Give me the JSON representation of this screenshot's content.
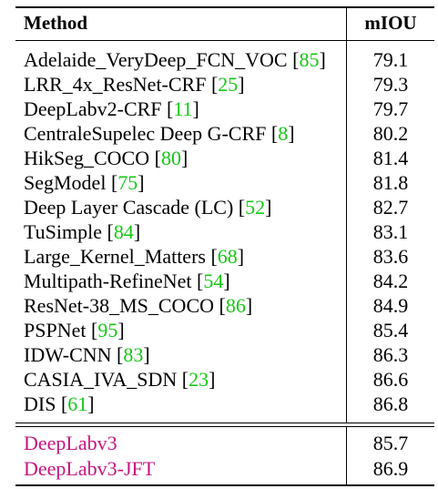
{
  "table": {
    "headers": {
      "method": "Method",
      "miou": "mIOU"
    },
    "rows": [
      {
        "method": "Adelaide_VeryDeep_FCN_VOC",
        "ref": "85",
        "miou": "79.1"
      },
      {
        "method": "LRR_4x_ResNet-CRF",
        "ref": "25",
        "miou": "79.3"
      },
      {
        "method": "DeepLabv2-CRF",
        "ref": "11",
        "miou": "79.7"
      },
      {
        "method": "CentraleSupelec Deep G-CRF",
        "ref": "8",
        "miou": "80.2"
      },
      {
        "method": "HikSeg_COCO",
        "ref": "80",
        "miou": "81.4"
      },
      {
        "method": "SegModel",
        "ref": "75",
        "miou": "81.8"
      },
      {
        "method": "Deep Layer Cascade (LC)",
        "ref": "52",
        "miou": "82.7"
      },
      {
        "method": "TuSimple",
        "ref": "84",
        "miou": "83.1"
      },
      {
        "method": "Large_Kernel_Matters",
        "ref": "68",
        "miou": "83.6"
      },
      {
        "method": "Multipath-RefineNet",
        "ref": "54",
        "miou": "84.2"
      },
      {
        "method": "ResNet-38_MS_COCO",
        "ref": "86",
        "miou": "84.9"
      },
      {
        "method": "PSPNet",
        "ref": "95",
        "miou": "85.4"
      },
      {
        "method": "IDW-CNN",
        "ref": "83",
        "miou": "86.3"
      },
      {
        "method": "CASIA_IVA_SDN",
        "ref": "23",
        "miou": "86.6"
      },
      {
        "method": "DIS",
        "ref": "61",
        "miou": "86.8"
      }
    ],
    "ours": [
      {
        "method": "DeepLabv3",
        "miou": "85.7"
      },
      {
        "method": "DeepLabv3-JFT",
        "miou": "86.9"
      }
    ]
  },
  "colors": {
    "citation": "#14c814",
    "ours": "#c8157e"
  }
}
